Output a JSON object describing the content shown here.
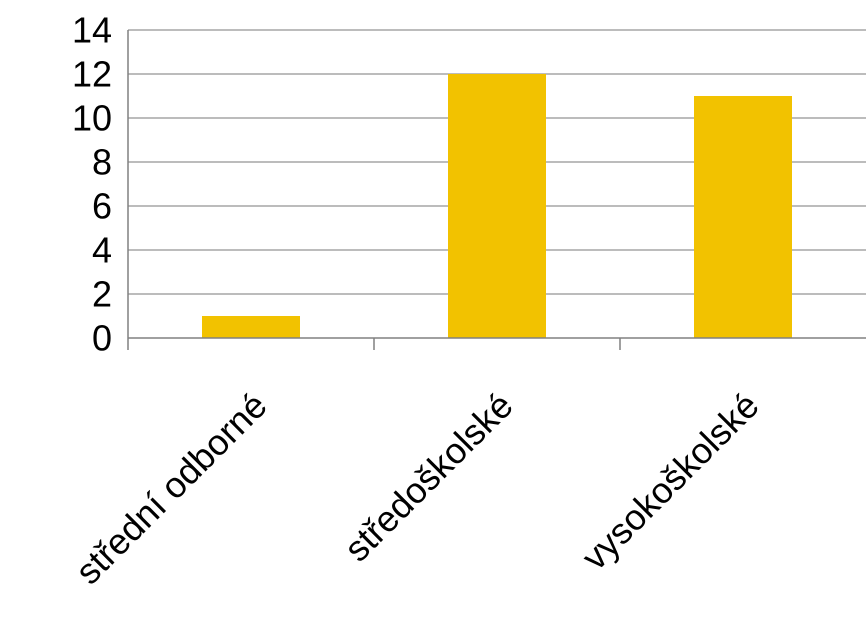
{
  "chart_data": {
    "type": "bar",
    "categories": [
      "střední odborné",
      "středoškolské",
      "vysokoškolské"
    ],
    "values": [
      1,
      12,
      11
    ],
    "ylim": [
      0,
      14
    ],
    "yticks": [
      0,
      2,
      4,
      6,
      8,
      10,
      12,
      14
    ],
    "grid": true,
    "legend": "none",
    "colors": {
      "bar": "#F2C200",
      "grid": "#A6A6A6",
      "axis": "#808080"
    }
  }
}
